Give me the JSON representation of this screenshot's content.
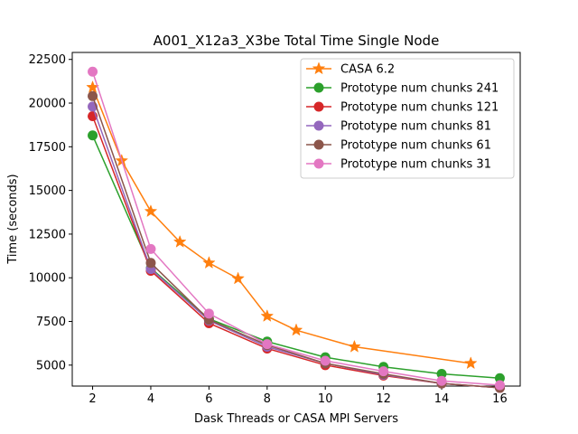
{
  "chart_data": {
    "type": "line",
    "title": "A001_X12a3_X3be Total Time Single Node",
    "xlabel": "Dask Threads or CASA MPI Servers",
    "ylabel": "Time (seconds)",
    "xlim": [
      1.3,
      16.7
    ],
    "ylim": [
      3800,
      22900
    ],
    "xticks": [
      2,
      4,
      6,
      8,
      10,
      12,
      14,
      16
    ],
    "yticks": [
      5000,
      7500,
      10000,
      12500,
      15000,
      17500,
      20000,
      22500
    ],
    "grid": false,
    "legend_position": "top-right",
    "series": [
      {
        "name": "CASA 6.2",
        "color": "#ff7f0e",
        "marker": "star",
        "x": [
          2,
          3,
          4,
          5,
          6,
          7,
          8,
          9,
          11,
          15
        ],
        "y": [
          20900,
          16700,
          13800,
          12050,
          10850,
          9950,
          7800,
          7000,
          6050,
          5100
        ]
      },
      {
        "name": "Prototype num chunks 241",
        "color": "#2ca02c",
        "marker": "circle",
        "x": [
          2,
          4,
          6,
          8,
          10,
          12,
          14,
          16
        ],
        "y": [
          18150,
          10550,
          7650,
          6350,
          5450,
          4900,
          4500,
          4250
        ]
      },
      {
        "name": "Prototype num chunks 121",
        "color": "#d62728",
        "marker": "circle",
        "x": [
          2,
          4,
          6,
          8,
          10,
          12,
          14,
          16
        ],
        "y": [
          19250,
          10400,
          7400,
          5950,
          5000,
          4400,
          3950,
          3700
        ]
      },
      {
        "name": "Prototype num chunks 81",
        "color": "#9467bd",
        "marker": "circle",
        "x": [
          2,
          4,
          6,
          8,
          10,
          12,
          14,
          16
        ],
        "y": [
          19800,
          10500,
          7550,
          6050,
          5100,
          4450,
          3950,
          3700
        ]
      },
      {
        "name": "Prototype num chunks 61",
        "color": "#8c564b",
        "marker": "circle",
        "x": [
          2,
          4,
          6,
          8,
          10,
          12,
          14,
          16
        ],
        "y": [
          20400,
          10850,
          7600,
          6150,
          5100,
          4500,
          3950,
          3700
        ]
      },
      {
        "name": "Prototype num chunks 31",
        "color": "#e377c2",
        "marker": "circle",
        "x": [
          2,
          4,
          6,
          8,
          10,
          12,
          14,
          16
        ],
        "y": [
          21800,
          11650,
          7950,
          6200,
          5250,
          4650,
          4100,
          3850
        ]
      }
    ]
  }
}
